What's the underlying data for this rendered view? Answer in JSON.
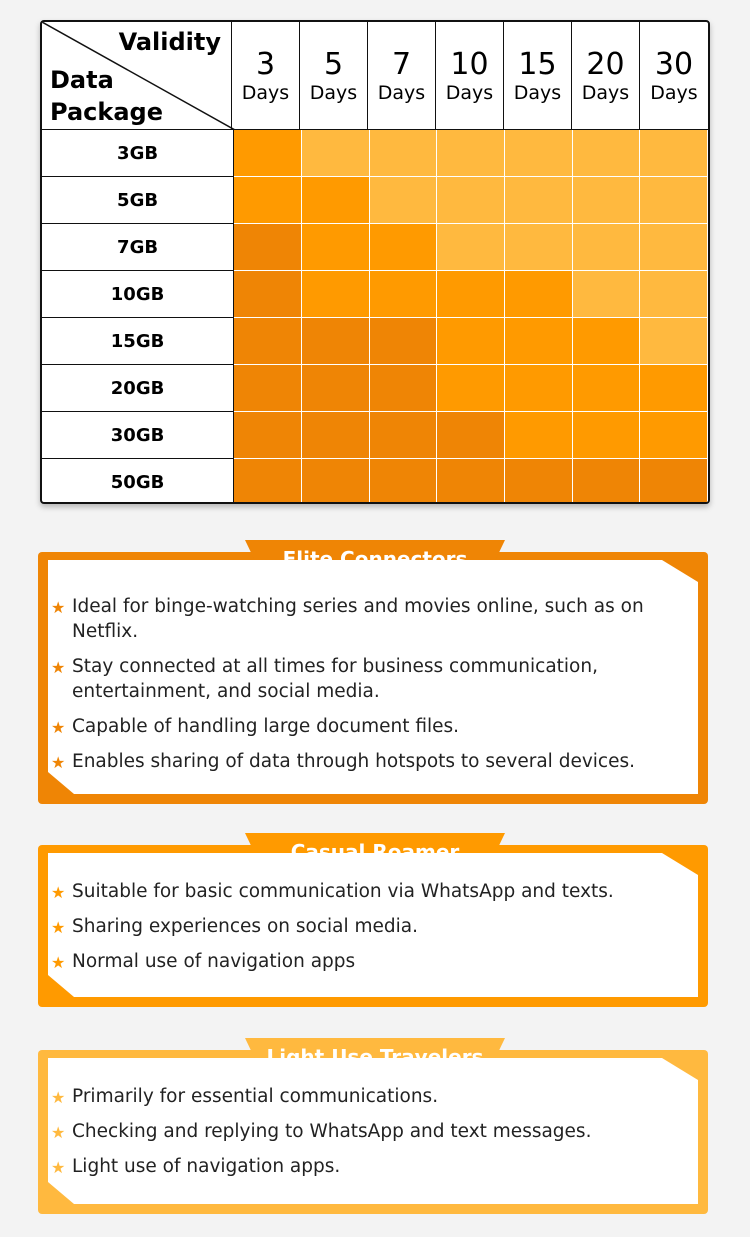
{
  "table": {
    "corner_top": "Validity",
    "corner_bottom": [
      "Data",
      "Package"
    ],
    "days": [
      {
        "num": "3",
        "unit": "Days"
      },
      {
        "num": "5",
        "unit": "Days"
      },
      {
        "num": "7",
        "unit": "Days"
      },
      {
        "num": "10",
        "unit": "Days"
      },
      {
        "num": "15",
        "unit": "Days"
      },
      {
        "num": "20",
        "unit": "Days"
      },
      {
        "num": "30",
        "unit": "Days"
      }
    ],
    "packages": [
      "3GB",
      "5GB",
      "7GB",
      "10GB",
      "15GB",
      "20GB",
      "30GB",
      "50GB"
    ],
    "levels": [
      [
        "C",
        "L",
        "L",
        "L",
        "L",
        "L",
        "L"
      ],
      [
        "C",
        "C",
        "L",
        "L",
        "L",
        "L",
        "L"
      ],
      [
        "E",
        "C",
        "C",
        "L",
        "L",
        "L",
        "L"
      ],
      [
        "E",
        "C",
        "C",
        "C",
        "C",
        "L",
        "L"
      ],
      [
        "E",
        "E",
        "E",
        "C",
        "C",
        "C",
        "L"
      ],
      [
        "E",
        "E",
        "E",
        "C",
        "C",
        "C",
        "C"
      ],
      [
        "E",
        "E",
        "E",
        "E",
        "C",
        "C",
        "C"
      ],
      [
        "E",
        "E",
        "E",
        "E",
        "E",
        "E",
        "E"
      ]
    ]
  },
  "colors": {
    "E": "#EF8505",
    "C": "#FF9A00",
    "L": "#FFB93F"
  },
  "cards": [
    {
      "key": "E",
      "title": "Elite Connectors",
      "items": [
        "Ideal for binge-watching series and movies online, such as on Netflix.",
        "Stay connected at all times for business communication, entertainment, and social media.",
        "Capable of handling large document files.",
        "Enables sharing of data through hotspots to several devices."
      ]
    },
    {
      "key": "C",
      "title": "Casual Roamer",
      "items": [
        "Suitable for basic communication via WhatsApp and texts.",
        "Sharing experiences on social media.",
        "Normal use of navigation apps"
      ]
    },
    {
      "key": "L",
      "title": "Light Use Travelers",
      "items": [
        "Primarily for essential communications.",
        "Checking and replying to WhatsApp and text messages.",
        "Light use of navigation apps."
      ]
    }
  ]
}
